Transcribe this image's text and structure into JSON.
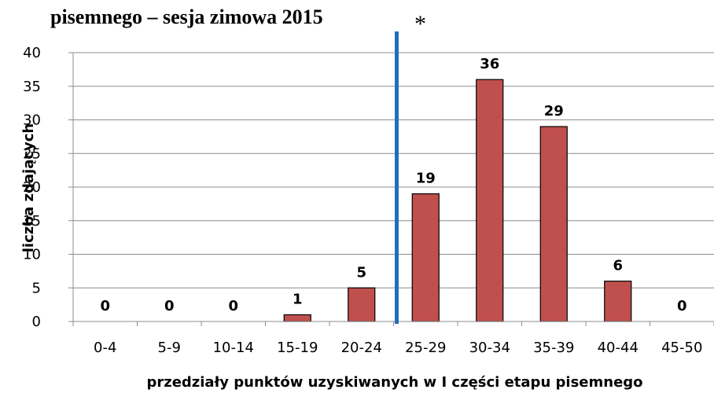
{
  "chart_data": {
    "type": "bar",
    "title": "pisemnego – sesja zimowa 2015",
    "xlabel": "przedziały punktów uzyskiwanych  w I części etapu pisemnego",
    "ylabel": "liczba  zdających",
    "categories": [
      "0-4",
      "5-9",
      "10-14",
      "15-19",
      "20-24",
      "25-29",
      "30-34",
      "35-39",
      "40-44",
      "45-50"
    ],
    "values": [
      0,
      0,
      0,
      1,
      5,
      19,
      36,
      29,
      6,
      0
    ],
    "data_labels": [
      "0",
      "0",
      "0",
      "1",
      "5",
      "19",
      "36",
      "29",
      "6",
      "0"
    ],
    "ylim": [
      0,
      40
    ],
    "yticks": [
      0,
      5,
      10,
      15,
      20,
      25,
      30,
      35,
      40
    ],
    "grid": true,
    "legend": "none",
    "bar_color": "#c0504d",
    "bar_edge_color": "#000000",
    "threshold_line": {
      "position": "left edge of 25-29",
      "color": "#1f6fbf",
      "marker": "*"
    }
  }
}
